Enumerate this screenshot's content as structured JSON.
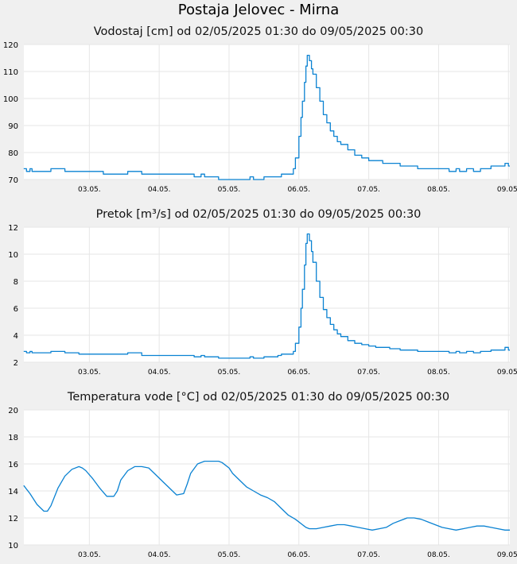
{
  "page_title": "Postaja Jelovec - Mirna",
  "colors": {
    "background": "#f0f0f0",
    "plot_background": "#ffffff",
    "grid": "#e6e6e6",
    "line": "#0a82d2"
  },
  "chart_data": [
    {
      "type": "line",
      "title": "Vodostaj [cm] od 02/05/2025 01:30 do 09/05/2025 00:30",
      "xlabel": "",
      "ylabel": "",
      "ylim": [
        70,
        120
      ],
      "yticks": [
        70,
        80,
        90,
        100,
        110,
        120
      ],
      "x_range_days": [
        2.0625,
        9.02
      ],
      "xtick_labels": [
        "03.05.",
        "04.05.",
        "05.05.",
        "06.05.",
        "07.05.",
        "08.05.",
        "09.05."
      ],
      "xtick_days": [
        3,
        4,
        5,
        6,
        7,
        8,
        9
      ],
      "grid": true,
      "series": [
        {
          "step": true,
          "x": [
            2.06,
            2.1,
            2.15,
            2.18,
            2.22,
            2.4,
            2.45,
            2.6,
            2.65,
            2.8,
            2.85,
            3.2,
            3.25,
            3.5,
            3.55,
            3.7,
            3.75,
            4.5,
            4.55,
            4.6,
            4.65,
            4.8,
            4.85,
            5.25,
            5.3,
            5.35,
            5.45,
            5.5,
            5.7,
            5.75,
            5.9,
            5.92,
            5.95,
            6.0,
            6.03,
            6.05,
            6.08,
            6.1,
            6.12,
            6.13,
            6.15,
            6.18,
            6.2,
            6.25,
            6.3,
            6.35,
            6.4,
            6.45,
            6.5,
            6.55,
            6.6,
            6.7,
            6.8,
            6.9,
            7.0,
            7.1,
            7.2,
            7.3,
            7.4,
            7.45,
            7.5,
            7.6,
            7.7,
            7.8,
            7.9,
            8.0,
            8.05,
            8.15,
            8.2,
            8.25,
            8.3,
            8.4,
            8.5,
            8.6,
            8.7,
            8.75,
            8.8,
            8.85,
            8.9,
            8.95,
            9.0,
            9.02
          ],
          "values": [
            74,
            73,
            74,
            73,
            73,
            73,
            74,
            74,
            73,
            73,
            73,
            72,
            72,
            72,
            73,
            73,
            72,
            71,
            71,
            72,
            71,
            71,
            70,
            70,
            71,
            70,
            70,
            71,
            71,
            72,
            72,
            74,
            78,
            86,
            93,
            99,
            106,
            112,
            116,
            116,
            114,
            111,
            109,
            104,
            99,
            94,
            91,
            88,
            86,
            84,
            83,
            81,
            79,
            78,
            77,
            77,
            76,
            76,
            76,
            75,
            75,
            75,
            74,
            74,
            74,
            74,
            74,
            73,
            73,
            74,
            73,
            74,
            73,
            74,
            74,
            75,
            75,
            75,
            75,
            76,
            75,
            75
          ]
        }
      ]
    },
    {
      "type": "line",
      "title": "Pretok [m³/s] od 02/05/2025 01:30 do 09/05/2025 00:30",
      "xlabel": "",
      "ylabel": "",
      "ylim": [
        2,
        12
      ],
      "yticks": [
        2,
        4,
        6,
        8,
        10,
        12
      ],
      "x_range_days": [
        2.0625,
        9.02
      ],
      "xtick_labels": [
        "03.05.",
        "04.05.",
        "05.05.",
        "06.05.",
        "07.05.",
        "08.05.",
        "09.05."
      ],
      "xtick_days": [
        3,
        4,
        5,
        6,
        7,
        8,
        9
      ],
      "grid": true,
      "series": [
        {
          "step": true,
          "x": [
            2.06,
            2.1,
            2.15,
            2.18,
            2.22,
            2.4,
            2.45,
            2.6,
            2.65,
            2.8,
            2.85,
            3.2,
            3.25,
            3.5,
            3.55,
            3.7,
            3.75,
            4.5,
            4.55,
            4.6,
            4.65,
            4.8,
            4.85,
            5.25,
            5.3,
            5.35,
            5.45,
            5.5,
            5.7,
            5.75,
            5.9,
            5.92,
            5.95,
            6.0,
            6.03,
            6.05,
            6.08,
            6.1,
            6.12,
            6.13,
            6.15,
            6.18,
            6.2,
            6.25,
            6.3,
            6.35,
            6.4,
            6.45,
            6.5,
            6.55,
            6.6,
            6.7,
            6.8,
            6.9,
            7.0,
            7.1,
            7.2,
            7.3,
            7.4,
            7.45,
            7.5,
            7.6,
            7.7,
            7.8,
            7.9,
            8.0,
            8.05,
            8.15,
            8.2,
            8.25,
            8.3,
            8.4,
            8.5,
            8.6,
            8.7,
            8.75,
            8.8,
            8.85,
            8.9,
            8.95,
            9.0,
            9.02
          ],
          "values": [
            2.8,
            2.7,
            2.8,
            2.7,
            2.7,
            2.7,
            2.8,
            2.8,
            2.7,
            2.7,
            2.6,
            2.6,
            2.6,
            2.6,
            2.7,
            2.7,
            2.5,
            2.4,
            2.4,
            2.5,
            2.4,
            2.4,
            2.3,
            2.3,
            2.4,
            2.3,
            2.3,
            2.4,
            2.5,
            2.6,
            2.6,
            2.8,
            3.4,
            4.6,
            6.0,
            7.4,
            9.2,
            10.8,
            11.5,
            11.5,
            11.0,
            10.2,
            9.4,
            8.0,
            6.8,
            5.9,
            5.3,
            4.8,
            4.4,
            4.1,
            3.9,
            3.6,
            3.4,
            3.3,
            3.2,
            3.1,
            3.1,
            3.0,
            3.0,
            2.9,
            2.9,
            2.9,
            2.8,
            2.8,
            2.8,
            2.8,
            2.8,
            2.7,
            2.7,
            2.8,
            2.7,
            2.8,
            2.7,
            2.8,
            2.8,
            2.9,
            2.9,
            2.9,
            2.9,
            3.1,
            2.9,
            2.9
          ]
        }
      ]
    },
    {
      "type": "line",
      "title": "Temperatura vode [°C] od 02/05/2025 01:30 do 09/05/2025 00:30",
      "xlabel": "",
      "ylabel": "",
      "ylim": [
        10,
        20
      ],
      "yticks": [
        10,
        12,
        14,
        16,
        18,
        20
      ],
      "x_range_days": [
        2.0625,
        9.02
      ],
      "xtick_labels": [
        "03.05.",
        "04.05.",
        "05.05.",
        "06.05.",
        "07.05.",
        "08.05.",
        "09.05."
      ],
      "xtick_days": [
        3,
        4,
        5,
        6,
        7,
        8,
        9
      ],
      "grid": true,
      "series": [
        {
          "step": false,
          "x": [
            2.06,
            2.15,
            2.25,
            2.35,
            2.4,
            2.45,
            2.55,
            2.65,
            2.75,
            2.85,
            2.9,
            2.95,
            3.05,
            3.15,
            3.25,
            3.35,
            3.4,
            3.45,
            3.55,
            3.65,
            3.75,
            3.85,
            3.95,
            4.05,
            4.15,
            4.25,
            4.35,
            4.4,
            4.45,
            4.55,
            4.65,
            4.75,
            4.85,
            4.9,
            5.0,
            5.05,
            5.15,
            5.25,
            5.35,
            5.45,
            5.55,
            5.65,
            5.75,
            5.85,
            5.95,
            6.05,
            6.1,
            6.15,
            6.2,
            6.25,
            6.35,
            6.45,
            6.55,
            6.65,
            6.75,
            6.85,
            6.95,
            7.05,
            7.15,
            7.25,
            7.35,
            7.45,
            7.55,
            7.65,
            7.75,
            7.85,
            7.95,
            8.05,
            8.15,
            8.25,
            8.35,
            8.45,
            8.55,
            8.65,
            8.75,
            8.85,
            8.95,
            9.02
          ],
          "values": [
            14.4,
            13.8,
            13.0,
            12.5,
            12.5,
            12.9,
            14.2,
            15.1,
            15.6,
            15.8,
            15.7,
            15.5,
            14.9,
            14.2,
            13.6,
            13.6,
            14.0,
            14.8,
            15.5,
            15.8,
            15.8,
            15.7,
            15.2,
            14.7,
            14.2,
            13.7,
            13.8,
            14.5,
            15.3,
            16.0,
            16.2,
            16.2,
            16.2,
            16.1,
            15.7,
            15.3,
            14.8,
            14.3,
            14.0,
            13.7,
            13.5,
            13.2,
            12.7,
            12.2,
            11.9,
            11.5,
            11.3,
            11.2,
            11.2,
            11.2,
            11.3,
            11.4,
            11.5,
            11.5,
            11.4,
            11.3,
            11.2,
            11.1,
            11.2,
            11.3,
            11.6,
            11.8,
            12.0,
            12.0,
            11.9,
            11.7,
            11.5,
            11.3,
            11.2,
            11.1,
            11.2,
            11.3,
            11.4,
            11.4,
            11.3,
            11.2,
            11.1,
            11.1
          ]
        }
      ]
    }
  ]
}
